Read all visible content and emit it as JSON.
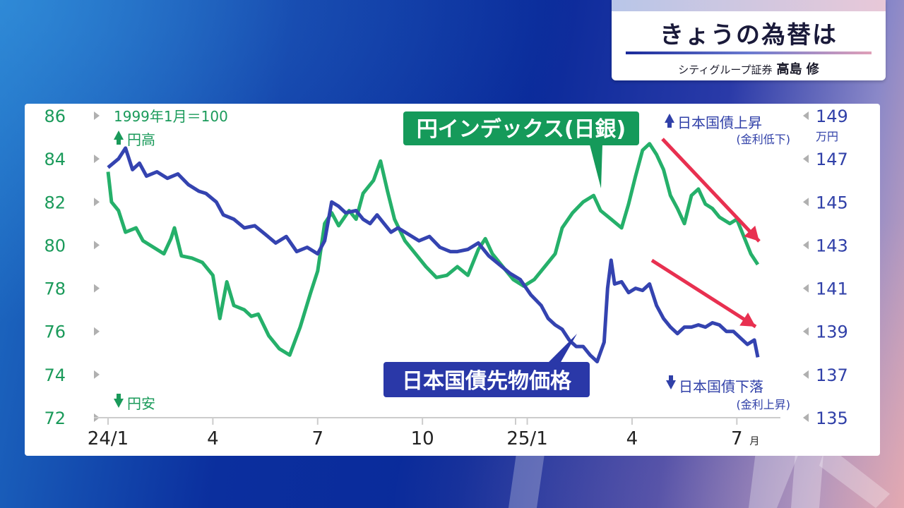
{
  "header": {
    "title": "きょうの為替は",
    "subtitle": "シティグループ証券",
    "person": "高島 修"
  },
  "colors": {
    "green": "#25b06a",
    "blue": "#3443b0",
    "arrow_red": "#e83050",
    "label_green_bg": "#159a5a",
    "label_blue_bg": "#2a38a8"
  },
  "chart_data": {
    "type": "line",
    "x_ticks": [
      "24/1",
      "4",
      "7",
      "10",
      "25/1",
      "4",
      "7"
    ],
    "x_unit": "月",
    "left_axis": {
      "ticks": [
        "86",
        "84",
        "82",
        "80",
        "78",
        "76",
        "74",
        "72"
      ],
      "ylim": [
        72,
        86
      ],
      "note": "1999年1月＝100",
      "top_label": "円高",
      "bottom_label": "円安"
    },
    "right_axis": {
      "ticks": [
        "149",
        "147",
        "145",
        "143",
        "141",
        "139",
        "137",
        "135"
      ],
      "ylim": [
        135,
        149
      ],
      "unit": "万円",
      "top_label": "日本国債上昇",
      "top_sub": "(金利低下)",
      "bottom_label": "日本国債下落",
      "bottom_sub": "(金利上昇)"
    },
    "series": [
      {
        "name": "円インデックス(日銀)",
        "axis": "left",
        "points": [
          [
            0,
            83.4
          ],
          [
            0.1,
            82.0
          ],
          [
            0.3,
            81.6
          ],
          [
            0.5,
            80.6
          ],
          [
            0.8,
            80.8
          ],
          [
            1.0,
            80.2
          ],
          [
            1.3,
            79.9
          ],
          [
            1.6,
            79.6
          ],
          [
            1.8,
            80.3
          ],
          [
            1.9,
            80.8
          ],
          [
            2.1,
            79.5
          ],
          [
            2.4,
            79.4
          ],
          [
            2.7,
            79.2
          ],
          [
            3.0,
            78.6
          ],
          [
            3.2,
            76.6
          ],
          [
            3.4,
            78.3
          ],
          [
            3.6,
            77.2
          ],
          [
            3.9,
            77.0
          ],
          [
            4.1,
            76.7
          ],
          [
            4.3,
            76.8
          ],
          [
            4.6,
            75.8
          ],
          [
            4.9,
            75.2
          ],
          [
            5.2,
            74.9
          ],
          [
            5.5,
            76.2
          ],
          [
            5.8,
            77.8
          ],
          [
            6.0,
            78.8
          ],
          [
            6.2,
            81.0
          ],
          [
            6.4,
            81.5
          ],
          [
            6.6,
            80.9
          ],
          [
            6.9,
            81.6
          ],
          [
            7.1,
            81.2
          ],
          [
            7.3,
            82.4
          ],
          [
            7.6,
            83.0
          ],
          [
            7.8,
            83.9
          ],
          [
            8.0,
            82.5
          ],
          [
            8.2,
            81.2
          ],
          [
            8.5,
            80.2
          ],
          [
            8.8,
            79.6
          ],
          [
            9.1,
            79.0
          ],
          [
            9.4,
            78.5
          ],
          [
            9.7,
            78.6
          ],
          [
            10.0,
            79.0
          ],
          [
            10.3,
            78.6
          ],
          [
            10.6,
            79.8
          ],
          [
            10.8,
            80.3
          ],
          [
            11.0,
            79.6
          ],
          [
            11.3,
            79.0
          ],
          [
            11.6,
            78.4
          ],
          [
            11.9,
            78.1
          ],
          [
            12.2,
            78.4
          ],
          [
            12.5,
            79.0
          ],
          [
            12.8,
            79.6
          ],
          [
            13.0,
            80.8
          ],
          [
            13.3,
            81.5
          ],
          [
            13.6,
            82.0
          ],
          [
            13.9,
            82.3
          ],
          [
            14.1,
            81.6
          ],
          [
            14.4,
            81.2
          ],
          [
            14.7,
            80.8
          ],
          [
            14.9,
            81.9
          ],
          [
            15.1,
            83.2
          ],
          [
            15.3,
            84.4
          ],
          [
            15.5,
            84.7
          ],
          [
            15.7,
            84.2
          ],
          [
            15.9,
            83.5
          ],
          [
            16.1,
            82.3
          ],
          [
            16.3,
            81.7
          ],
          [
            16.5,
            81.0
          ],
          [
            16.7,
            82.3
          ],
          [
            16.9,
            82.6
          ],
          [
            17.1,
            81.9
          ],
          [
            17.3,
            81.7
          ],
          [
            17.5,
            81.3
          ],
          [
            17.8,
            81.0
          ],
          [
            18.0,
            81.2
          ],
          [
            18.2,
            80.4
          ],
          [
            18.4,
            79.6
          ],
          [
            18.6,
            79.1
          ]
        ]
      },
      {
        "name": "日本国債先物価格",
        "axis": "right",
        "points": [
          [
            0,
            146.6
          ],
          [
            0.3,
            147.0
          ],
          [
            0.5,
            147.5
          ],
          [
            0.7,
            146.5
          ],
          [
            0.9,
            146.8
          ],
          [
            1.1,
            146.2
          ],
          [
            1.4,
            146.4
          ],
          [
            1.7,
            146.1
          ],
          [
            2.0,
            146.3
          ],
          [
            2.3,
            145.8
          ],
          [
            2.6,
            145.5
          ],
          [
            2.8,
            145.4
          ],
          [
            3.1,
            145.0
          ],
          [
            3.3,
            144.4
          ],
          [
            3.6,
            144.2
          ],
          [
            3.9,
            143.8
          ],
          [
            4.2,
            143.9
          ],
          [
            4.5,
            143.5
          ],
          [
            4.8,
            143.1
          ],
          [
            5.1,
            143.4
          ],
          [
            5.4,
            142.7
          ],
          [
            5.7,
            142.9
          ],
          [
            6.0,
            142.6
          ],
          [
            6.2,
            143.2
          ],
          [
            6.4,
            145.0
          ],
          [
            6.6,
            144.8
          ],
          [
            6.8,
            144.5
          ],
          [
            7.1,
            144.6
          ],
          [
            7.3,
            144.2
          ],
          [
            7.5,
            144.0
          ],
          [
            7.7,
            144.4
          ],
          [
            7.9,
            144.0
          ],
          [
            8.1,
            143.6
          ],
          [
            8.3,
            143.8
          ],
          [
            8.6,
            143.5
          ],
          [
            8.9,
            143.2
          ],
          [
            9.2,
            143.4
          ],
          [
            9.5,
            142.9
          ],
          [
            9.8,
            142.7
          ],
          [
            10.0,
            142.7
          ],
          [
            10.3,
            142.8
          ],
          [
            10.6,
            143.1
          ],
          [
            10.9,
            142.5
          ],
          [
            11.2,
            142.1
          ],
          [
            11.5,
            141.7
          ],
          [
            11.8,
            141.4
          ],
          [
            12.1,
            140.7
          ],
          [
            12.4,
            140.2
          ],
          [
            12.6,
            139.6
          ],
          [
            12.8,
            139.3
          ],
          [
            13.0,
            139.1
          ],
          [
            13.2,
            138.6
          ],
          [
            13.4,
            138.3
          ],
          [
            13.6,
            138.3
          ],
          [
            13.8,
            137.9
          ],
          [
            14.0,
            137.6
          ],
          [
            14.2,
            138.5
          ],
          [
            14.3,
            141.0
          ],
          [
            14.4,
            142.3
          ],
          [
            14.5,
            141.2
          ],
          [
            14.7,
            141.3
          ],
          [
            14.9,
            140.8
          ],
          [
            15.1,
            141.0
          ],
          [
            15.3,
            140.9
          ],
          [
            15.5,
            141.2
          ],
          [
            15.7,
            140.2
          ],
          [
            15.9,
            139.6
          ],
          [
            16.1,
            139.2
          ],
          [
            16.3,
            138.9
          ],
          [
            16.5,
            139.2
          ],
          [
            16.7,
            139.2
          ],
          [
            16.9,
            139.3
          ],
          [
            17.1,
            139.2
          ],
          [
            17.3,
            139.4
          ],
          [
            17.5,
            139.3
          ],
          [
            17.7,
            139.0
          ],
          [
            17.9,
            139.0
          ],
          [
            18.1,
            138.7
          ],
          [
            18.3,
            138.4
          ],
          [
            18.5,
            138.6
          ],
          [
            18.6,
            137.8
          ]
        ]
      }
    ],
    "annotations": [
      "円インデックス(日銀)",
      "日本国債先物価格"
    ]
  }
}
